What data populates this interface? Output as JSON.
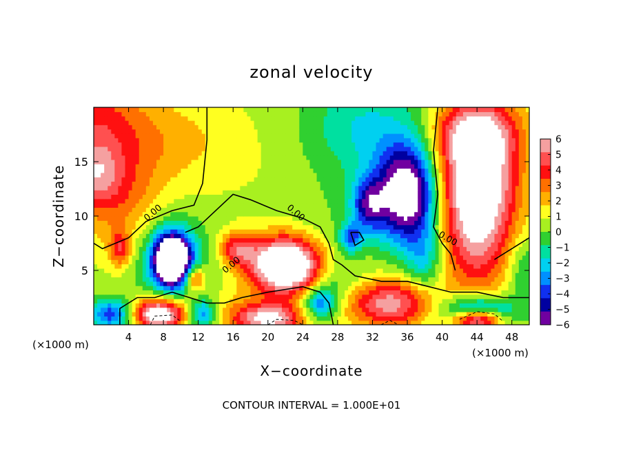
{
  "chart_data": {
    "type": "heatmap",
    "title": "zonal velocity",
    "xlabel": "X−coordinate",
    "ylabel": "Z−coordinate",
    "x_unit_left": "(×1000 m)",
    "x_unit_right": "(×1000 m)",
    "xlim": [
      0,
      50
    ],
    "ylim": [
      0,
      20
    ],
    "xticks": [
      4,
      8,
      12,
      16,
      20,
      24,
      28,
      32,
      36,
      40,
      44,
      48
    ],
    "yticks": [
      5,
      10,
      15
    ],
    "grid": false,
    "colorbar": {
      "range": [
        -6,
        6
      ],
      "tick_labels": [
        "6",
        "5",
        "4",
        "3",
        "2",
        "1",
        "0",
        "−1",
        "−2",
        "−3",
        "−4",
        "−5",
        "−6"
      ],
      "colors": [
        "#f5a0a0",
        "#ff5050",
        "#ff1010",
        "#ff7000",
        "#ffb000",
        "#ffff20",
        "#a8f020",
        "#30d030",
        "#00e0a0",
        "#00d0f0",
        "#0090ff",
        "#1030f0",
        "#0000a0",
        "#7000a0"
      ]
    },
    "contour_labels": [
      "0.00",
      "0.00",
      "0.00",
      "0.00"
    ],
    "footer": "CONTOUR INTERVAL = 1.000E+01",
    "blobs": [
      {
        "x": 0,
        "z": 19,
        "rx": 6,
        "rz": 4,
        "v": 3.0
      },
      {
        "x": 3,
        "z": 12,
        "rx": 5,
        "rz": 5,
        "v": 2.6
      },
      {
        "x": 0,
        "z": 14,
        "rx": 3,
        "rz": 3,
        "v": 3.6
      },
      {
        "x": 9,
        "z": 17,
        "rx": 7,
        "rz": 4,
        "v": 1.4
      },
      {
        "x": 20,
        "z": 15,
        "rx": 10,
        "rz": 6,
        "v": 0.3
      },
      {
        "x": 31,
        "z": 18,
        "rx": 7,
        "rz": 5,
        "v": -2.6
      },
      {
        "x": 26,
        "z": 9,
        "rx": 5,
        "rz": 4,
        "v": -0.6
      },
      {
        "x": 36,
        "z": 12,
        "rx": 3.5,
        "rz": 4.5,
        "v": -9.0
      },
      {
        "x": 31.5,
        "z": 11,
        "rx": 2,
        "rz": 2.5,
        "v": -5.0
      },
      {
        "x": 44,
        "z": 13.5,
        "rx": 4.5,
        "rz": 5.5,
        "v": 8.0
      },
      {
        "x": 44,
        "z": 18,
        "rx": 5,
        "rz": 3,
        "v": 4.0
      },
      {
        "x": 44,
        "z": 7,
        "rx": 4,
        "rz": 5,
        "v": 3.5
      },
      {
        "x": 49.5,
        "z": 5,
        "rx": 2,
        "rz": 3,
        "v": -2.0
      },
      {
        "x": 9,
        "z": 6,
        "rx": 2,
        "rz": 2.2,
        "v": -12.0
      },
      {
        "x": 9,
        "z": 6,
        "rx": 4,
        "rz": 4,
        "v": -3.0
      },
      {
        "x": 11.5,
        "z": 4.3,
        "rx": 1.3,
        "rz": 1.3,
        "v": 4.5
      },
      {
        "x": 16.5,
        "z": 7,
        "rx": 2,
        "rz": 1.5,
        "v": 4.2
      },
      {
        "x": 22,
        "z": 5.5,
        "rx": 4,
        "rz": 2.6,
        "v": 10.0
      },
      {
        "x": 3,
        "z": 7,
        "rx": 1.2,
        "rz": 1.6,
        "v": 3.5
      },
      {
        "x": 7.5,
        "z": 1,
        "rx": 3,
        "rz": 1.5,
        "v": 8.0
      },
      {
        "x": 2,
        "z": 1,
        "rx": 2.5,
        "rz": 1.4,
        "v": -5.0
      },
      {
        "x": 12.5,
        "z": 1,
        "rx": 1.5,
        "rz": 1.3,
        "v": -4.0
      },
      {
        "x": 20,
        "z": 0.6,
        "rx": 4,
        "rz": 1.4,
        "v": 6.5
      },
      {
        "x": 26,
        "z": 2,
        "rx": 2,
        "rz": 1.5,
        "v": -4.5
      },
      {
        "x": 34,
        "z": 2,
        "rx": 5,
        "rz": 2.2,
        "v": 5.5
      },
      {
        "x": 29.5,
        "z": 8,
        "rx": 1.3,
        "rz": 1.3,
        "v": -4.0
      },
      {
        "x": 38,
        "z": 6,
        "rx": 2,
        "rz": 3,
        "v": -2.5
      },
      {
        "x": 44,
        "z": 1,
        "rx": 4,
        "rz": 1.5,
        "v": -7.0
      },
      {
        "x": 44,
        "z": 0.5,
        "rx": 3,
        "rz": 1,
        "v": 10.0
      },
      {
        "x": 16,
        "z": 2,
        "rx": 3,
        "rz": 2,
        "v": 0.8
      },
      {
        "x": 28,
        "z": 4,
        "rx": 3,
        "rz": 2,
        "v": -1.5
      }
    ],
    "base_value": 0.6,
    "contours": [
      [
        [
          13,
          20
        ],
        [
          13,
          17
        ],
        [
          12.5,
          13
        ],
        [
          11.5,
          11
        ],
        [
          9,
          10.5
        ],
        [
          6,
          9.5
        ],
        [
          4,
          8
        ],
        [
          1,
          7
        ],
        [
          0,
          7.5
        ]
      ],
      [
        [
          10.5,
          8.5
        ],
        [
          12,
          9
        ],
        [
          14,
          10.5
        ],
        [
          16,
          12
        ],
        [
          18,
          11.5
        ],
        [
          21,
          10.5
        ],
        [
          24,
          9.8
        ],
        [
          26,
          9
        ],
        [
          27,
          7.5
        ],
        [
          27.5,
          6
        ],
        [
          28.5,
          5.5
        ],
        [
          30,
          4.5
        ],
        [
          33,
          4
        ],
        [
          36,
          4
        ],
        [
          38.5,
          3.5
        ],
        [
          41,
          3
        ],
        [
          44,
          3
        ],
        [
          47,
          2.5
        ],
        [
          50,
          2.5
        ]
      ],
      [
        [
          39.5,
          20
        ],
        [
          39,
          16
        ],
        [
          39.5,
          12
        ],
        [
          39,
          9
        ],
        [
          40,
          7.5
        ],
        [
          41,
          6.5
        ],
        [
          41.5,
          5
        ]
      ],
      [
        [
          3,
          0
        ],
        [
          3,
          1.5
        ],
        [
          5,
          2.5
        ],
        [
          7,
          2.5
        ],
        [
          9,
          3
        ],
        [
          11,
          2.5
        ],
        [
          13,
          2
        ],
        [
          15,
          2
        ],
        [
          17,
          2.5
        ],
        [
          20,
          3
        ],
        [
          24,
          3.5
        ],
        [
          26,
          3
        ],
        [
          27,
          2
        ],
        [
          27.5,
          0
        ]
      ],
      [
        [
          29.5,
          8.5
        ],
        [
          30.5,
          8.5
        ],
        [
          31,
          7.8
        ],
        [
          30,
          7.3
        ],
        [
          29.5,
          8.5
        ]
      ],
      [
        [
          46,
          6
        ],
        [
          48,
          7
        ],
        [
          50,
          8
        ]
      ]
    ],
    "dashed_contours": [
      [
        [
          6.5,
          0
        ],
        [
          7,
          0.8
        ],
        [
          9,
          0.9
        ],
        [
          10,
          0.3
        ]
      ],
      [
        [
          20,
          0
        ],
        [
          21,
          0.5
        ],
        [
          23,
          0.4
        ],
        [
          24,
          0
        ]
      ],
      [
        [
          42,
          0.5
        ],
        [
          44,
          1.2
        ],
        [
          46,
          1
        ],
        [
          47,
          0.3
        ]
      ],
      [
        [
          33,
          0
        ],
        [
          34,
          0.4
        ],
        [
          35,
          0
        ]
      ]
    ]
  }
}
